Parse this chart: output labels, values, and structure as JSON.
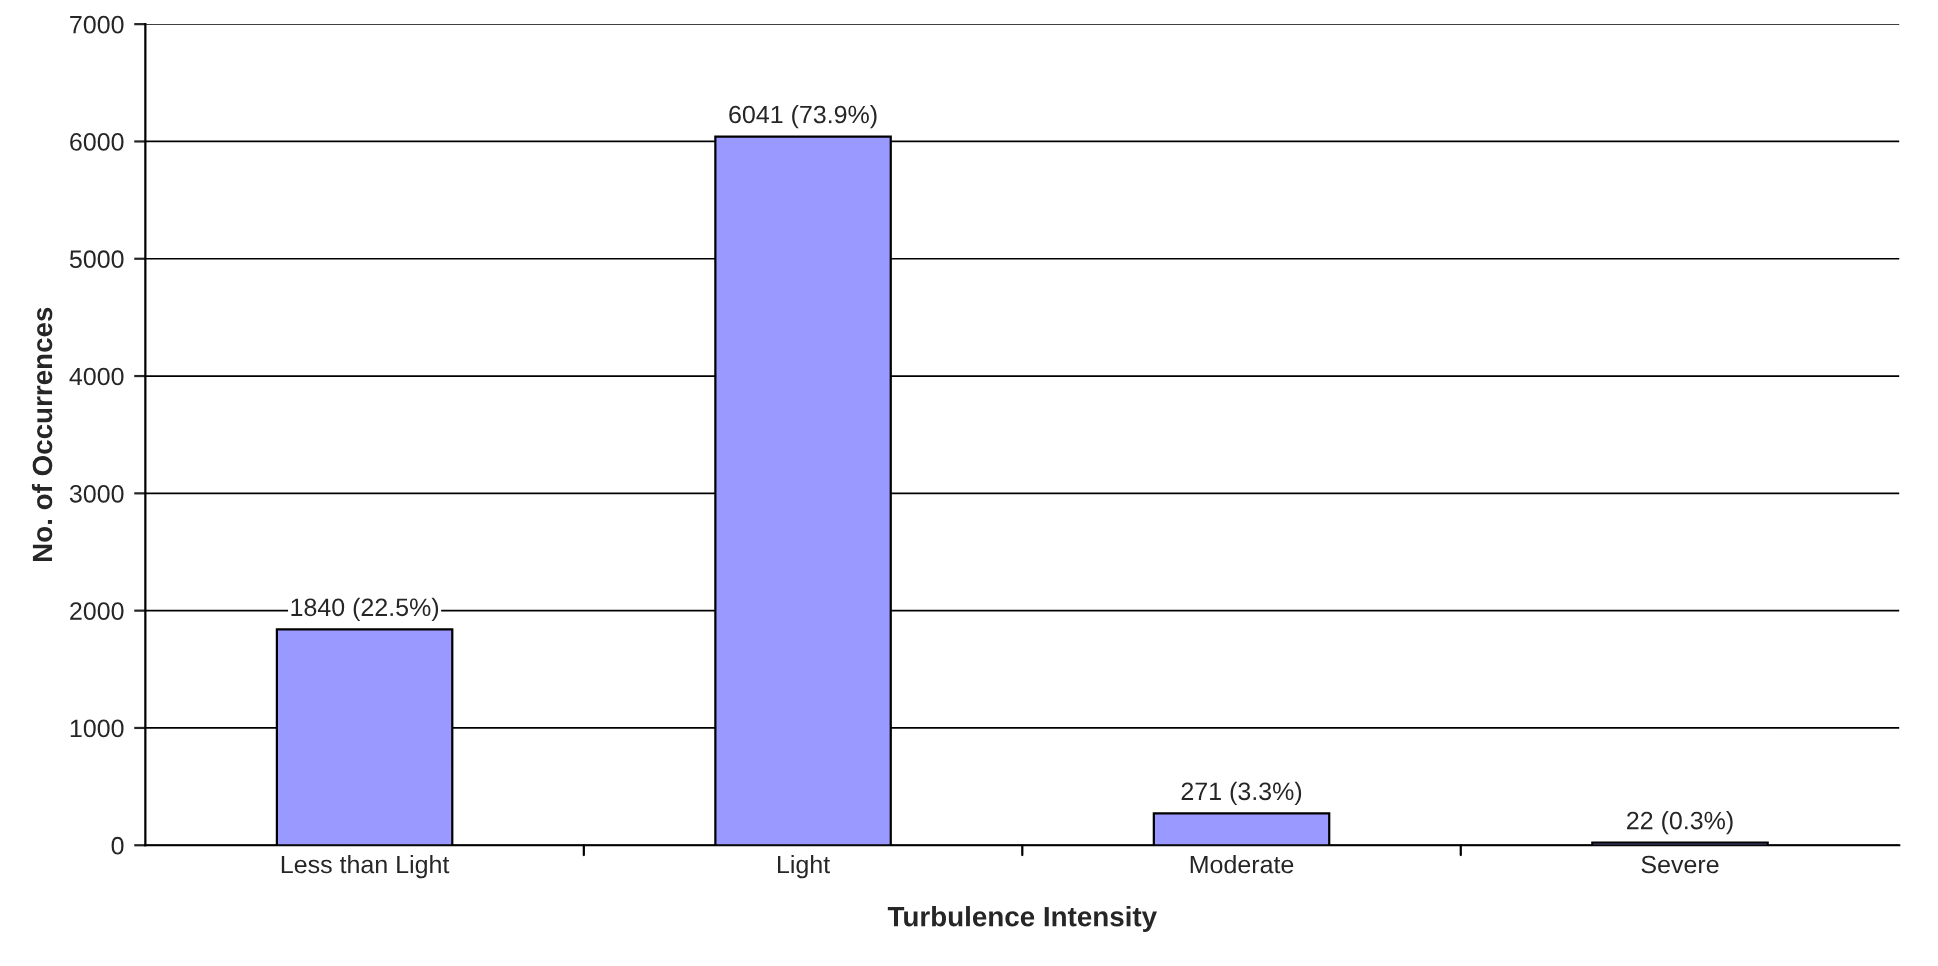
{
  "chart_data": {
    "type": "bar",
    "xlabel": "Turbulence Intensity",
    "ylabel": "No. of Occurrences",
    "categories": [
      "Less than Light",
      "Light",
      "Moderate",
      "Severe"
    ],
    "values": [
      1840,
      6041,
      271,
      22
    ],
    "value_labels": [
      "1840 (22.5%)",
      "6041 (73.9%)",
      "271 (3.3%)",
      "22 (0.3%)"
    ],
    "color": "#9999ff",
    "ylim": [
      0,
      7000
    ],
    "yticks": [
      0,
      1000,
      2000,
      3000,
      4000,
      5000,
      6000,
      7000
    ],
    "grid": "y",
    "legend": false
  }
}
